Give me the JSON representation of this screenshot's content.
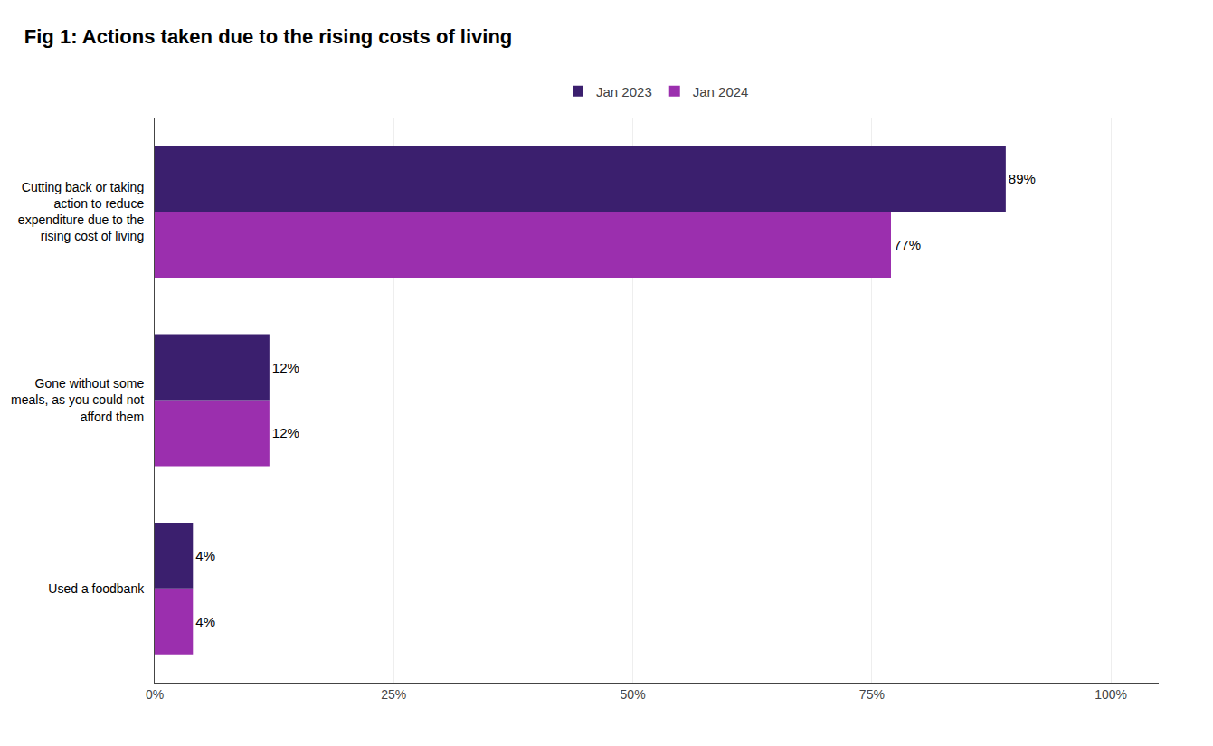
{
  "chart_data": {
    "type": "bar",
    "orientation": "horizontal",
    "title": "Fig 1: Actions taken due to the rising costs of living",
    "categories": [
      "Used a foodbank",
      "Gone without some\nmeals, as you could not\nafford them",
      "Cutting back or taking\naction to reduce\nexpenditure due to the\nrising cost of living"
    ],
    "series": [
      {
        "name": "Jan 2023",
        "color": "#3b1f6e",
        "values": [
          4,
          12,
          89
        ],
        "value_labels": [
          "4%",
          "12%",
          "89%"
        ]
      },
      {
        "name": "Jan 2024",
        "color": "#9b2fae",
        "values": [
          4,
          12,
          77
        ],
        "value_labels": [
          "4%",
          "12%",
          "77%"
        ]
      }
    ],
    "xlim": [
      0,
      105
    ],
    "xticks": [
      {
        "value": 0,
        "label": "0%"
      },
      {
        "value": 25,
        "label": "25%"
      },
      {
        "value": 50,
        "label": "50%"
      },
      {
        "value": 75,
        "label": "75%"
      },
      {
        "value": 100,
        "label": "100%"
      }
    ],
    "grid": true,
    "legend": "top",
    "data_labels": true
  }
}
